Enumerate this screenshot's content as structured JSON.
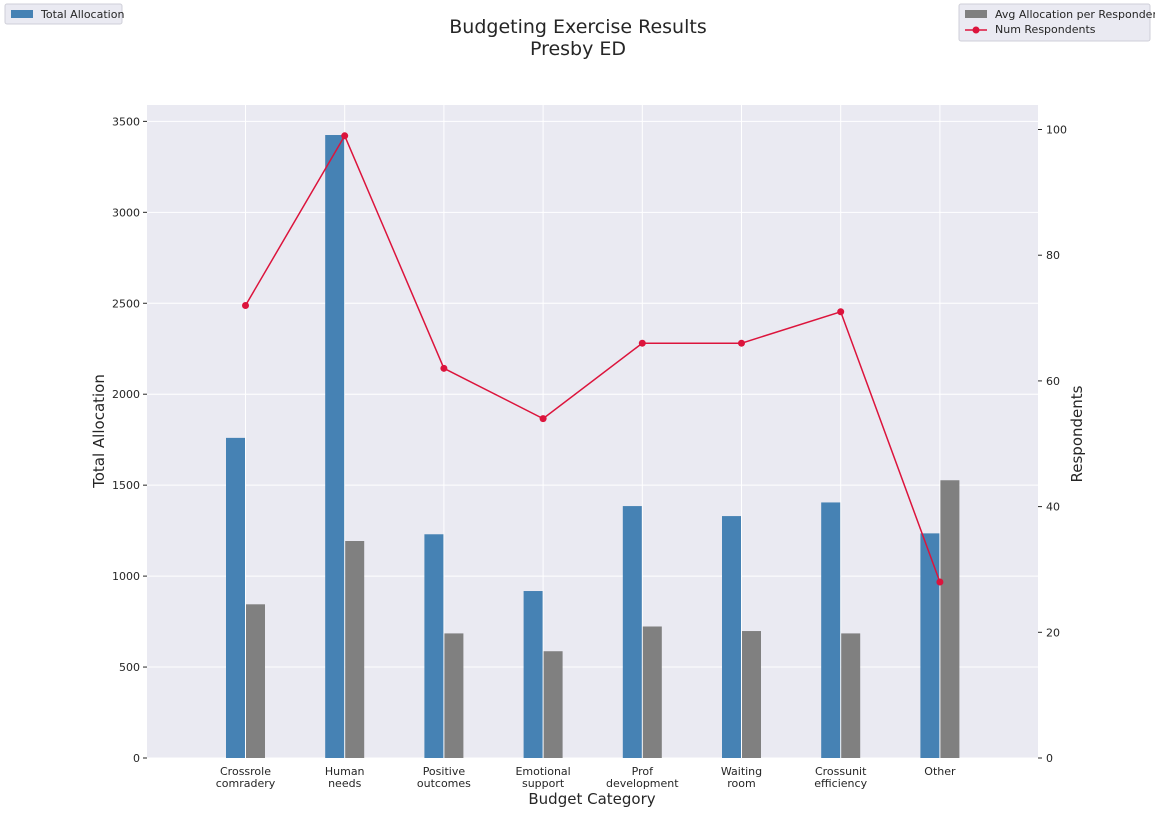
{
  "chart_data": {
    "type": "bar",
    "title": "Budgeting Exercise Results",
    "subtitle": "Presby ED",
    "xlabel": "Budget Category",
    "ylabel": "Total Allocation",
    "y2label": "Respondents",
    "categories": [
      [
        "Crossrole",
        "comradery"
      ],
      [
        "Human",
        "needs"
      ],
      [
        "Positive",
        "outcomes"
      ],
      [
        "Emotional",
        "support"
      ],
      [
        "Prof",
        "development"
      ],
      [
        "Waiting",
        "room"
      ],
      [
        "Crossunit",
        "efficiency"
      ],
      [
        "Other"
      ]
    ],
    "ylim": [
      0,
      3590
    ],
    "yticks": [
      0,
      500,
      1000,
      1500,
      2000,
      2500,
      3000,
      3500
    ],
    "y2lim": [
      0,
      103.9
    ],
    "y2ticks": [
      0,
      20,
      40,
      60,
      80,
      100
    ],
    "series": [
      {
        "name": "Total Allocation",
        "type": "bar",
        "axis": "left",
        "color": "#4682b4",
        "values": [
          1760,
          3425,
          1230,
          918,
          1385,
          1330,
          1405,
          1235
        ]
      },
      {
        "name": "Avg Allocation per Respondent",
        "type": "bar",
        "axis": "left",
        "color": "#808080",
        "values": [
          845,
          1193,
          685,
          587,
          723,
          698,
          685,
          1527
        ]
      },
      {
        "name": "Num Respondents",
        "type": "line",
        "axis": "right",
        "color": "#dc143c",
        "values": [
          72,
          99,
          62,
          54,
          66,
          66,
          71,
          28
        ]
      }
    ],
    "grid": true,
    "legend": [
      "top-left",
      "top-right"
    ]
  }
}
